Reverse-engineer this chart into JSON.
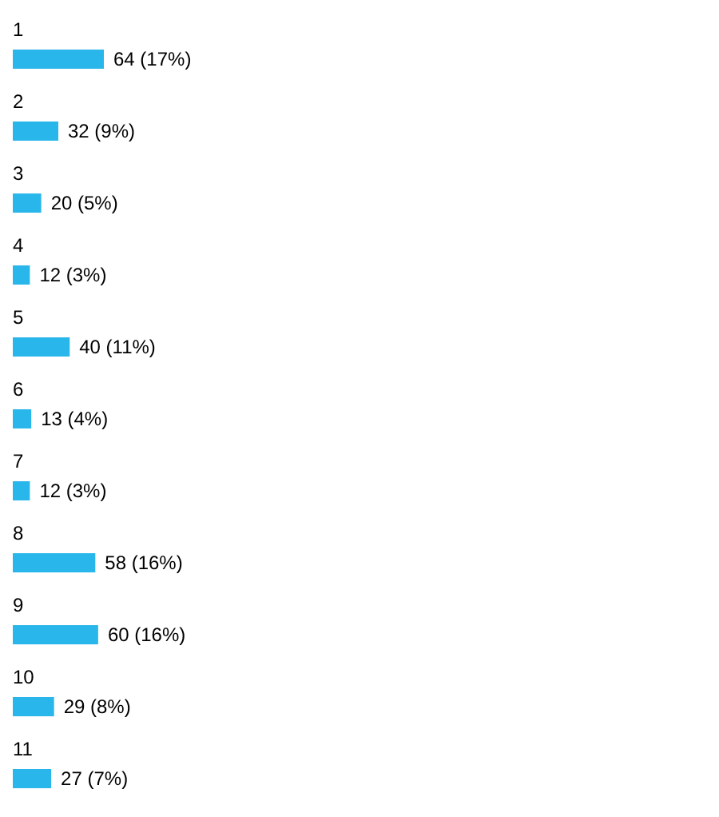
{
  "chart_data": {
    "type": "bar",
    "orientation": "horizontal",
    "categories": [
      "1",
      "2",
      "3",
      "4",
      "5",
      "6",
      "7",
      "8",
      "9",
      "10",
      "11"
    ],
    "values": [
      64,
      32,
      20,
      12,
      40,
      13,
      12,
      58,
      60,
      29,
      27
    ],
    "value_labels": [
      "64 (17%)",
      "32 (9%)",
      "20 (5%)",
      "12 (3%)",
      "40 (11%)",
      "13 (4%)",
      "12 (3%)",
      "58 (16%)",
      "60 (16%)",
      "29 (8%)",
      "27 (7%)"
    ],
    "color": "#29b6ea"
  }
}
